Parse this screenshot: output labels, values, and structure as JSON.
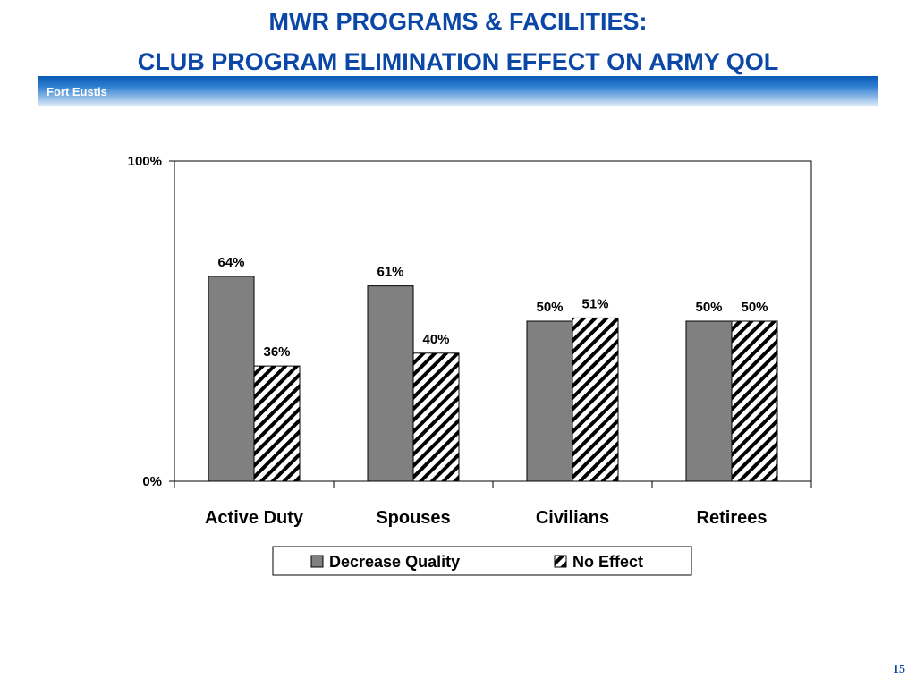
{
  "slide": {
    "title_line1": "MWR PROGRAMS & FACILITIES:",
    "title_line2": "CLUB PROGRAM ELIMINATION EFFECT ON ARMY QOL",
    "subtitle": "Fort Eustis",
    "page_number": "15"
  },
  "colors": {
    "title": "#0b47a6",
    "decrease_quality": "#808080",
    "no_effect_hatch": "#000000"
  },
  "chart_data": {
    "type": "bar",
    "categories": [
      "Active Duty",
      "Spouses",
      "Civilians",
      "Retirees"
    ],
    "series": [
      {
        "name": "Decrease Quality",
        "values": [
          64,
          61,
          50,
          50
        ],
        "labels": [
          "64%",
          "61%",
          "50%",
          "50%"
        ]
      },
      {
        "name": "No Effect",
        "values": [
          36,
          40,
          51,
          50
        ],
        "labels": [
          "36%",
          "40%",
          "51%",
          "50%"
        ]
      }
    ],
    "ylim": [
      0,
      100
    ],
    "yticks": [
      "0%",
      "100%"
    ],
    "grid": false,
    "legend": "bottom"
  }
}
